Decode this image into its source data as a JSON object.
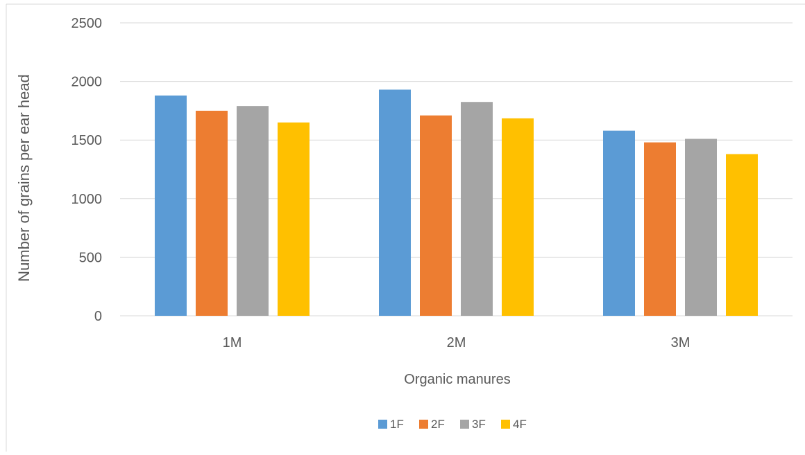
{
  "colors": {
    "gridline": "#d9d9d9",
    "tick_text": "#595959",
    "border": "#d9d9d9",
    "1F": "#5b9bd5",
    "2F": "#ed7d31",
    "3F": "#a5a5a5",
    "4F": "#ffc000"
  },
  "chart_data": {
    "type": "bar",
    "title": "",
    "xlabel": "Organic manures",
    "ylabel": "Number of grains per ear head",
    "categories": [
      "1M",
      "2M",
      "3M"
    ],
    "series": [
      {
        "name": "1F",
        "values": [
          1880,
          1930,
          1580
        ]
      },
      {
        "name": "2F",
        "values": [
          1750,
          1710,
          1480
        ]
      },
      {
        "name": "3F",
        "values": [
          1790,
          1825,
          1510
        ]
      },
      {
        "name": "4F",
        "values": [
          1650,
          1685,
          1380
        ]
      }
    ],
    "ylim": [
      0,
      2500
    ],
    "yticks": [
      0,
      500,
      1000,
      1500,
      2000,
      2500
    ],
    "grid": true,
    "legend_position": "bottom"
  }
}
